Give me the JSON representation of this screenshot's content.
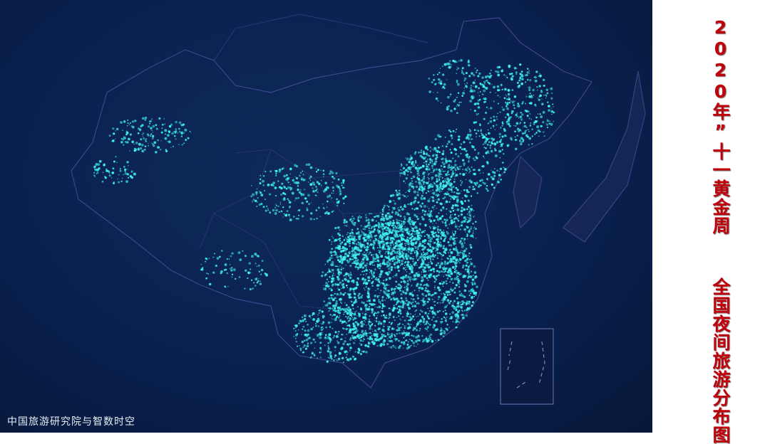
{
  "title": "2020年”十一黄金周  全国夜间旅游分布图",
  "source": "中国旅游研究院与智数时空",
  "colors": {
    "background": "#0a2150",
    "dots": "#3ff2f2",
    "borders": "#4a4f9a",
    "title": "#c0000a"
  },
  "map": {
    "subject": "China night-time tourism distribution",
    "inset": "South China Sea islands inset"
  }
}
